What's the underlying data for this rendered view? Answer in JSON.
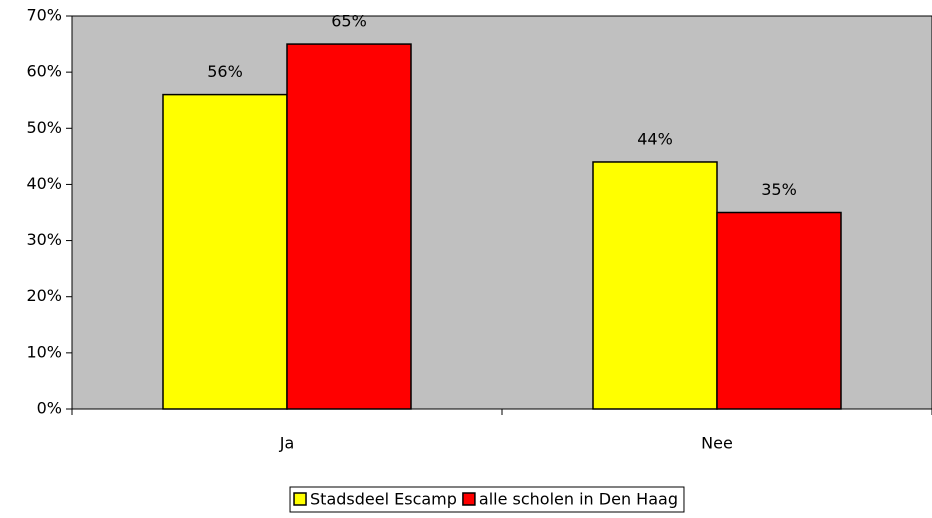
{
  "chart_data": {
    "type": "bar",
    "categories": [
      "Ja",
      "Nee"
    ],
    "series": [
      {
        "name": "Stadsdeel Escamp",
        "color": "#ffff00",
        "values": [
          56,
          44
        ],
        "value_labels": [
          "56%",
          "44%"
        ]
      },
      {
        "name": "alle scholen in Den Haag",
        "color": "#ff0000",
        "values": [
          65,
          35
        ],
        "value_labels": [
          "65%",
          "35%"
        ]
      }
    ],
    "ylim": [
      0,
      70
    ],
    "yticks": [
      {
        "value": 0,
        "label": "0%"
      },
      {
        "value": 10,
        "label": "10%"
      },
      {
        "value": 20,
        "label": "20%"
      },
      {
        "value": 30,
        "label": "30%"
      },
      {
        "value": 40,
        "label": "40%"
      },
      {
        "value": 50,
        "label": "50%"
      },
      {
        "value": 60,
        "label": "60%"
      },
      {
        "value": 70,
        "label": "70%"
      }
    ],
    "grid": false,
    "legend": "bottom",
    "plot_background": "#c0c0c0"
  }
}
